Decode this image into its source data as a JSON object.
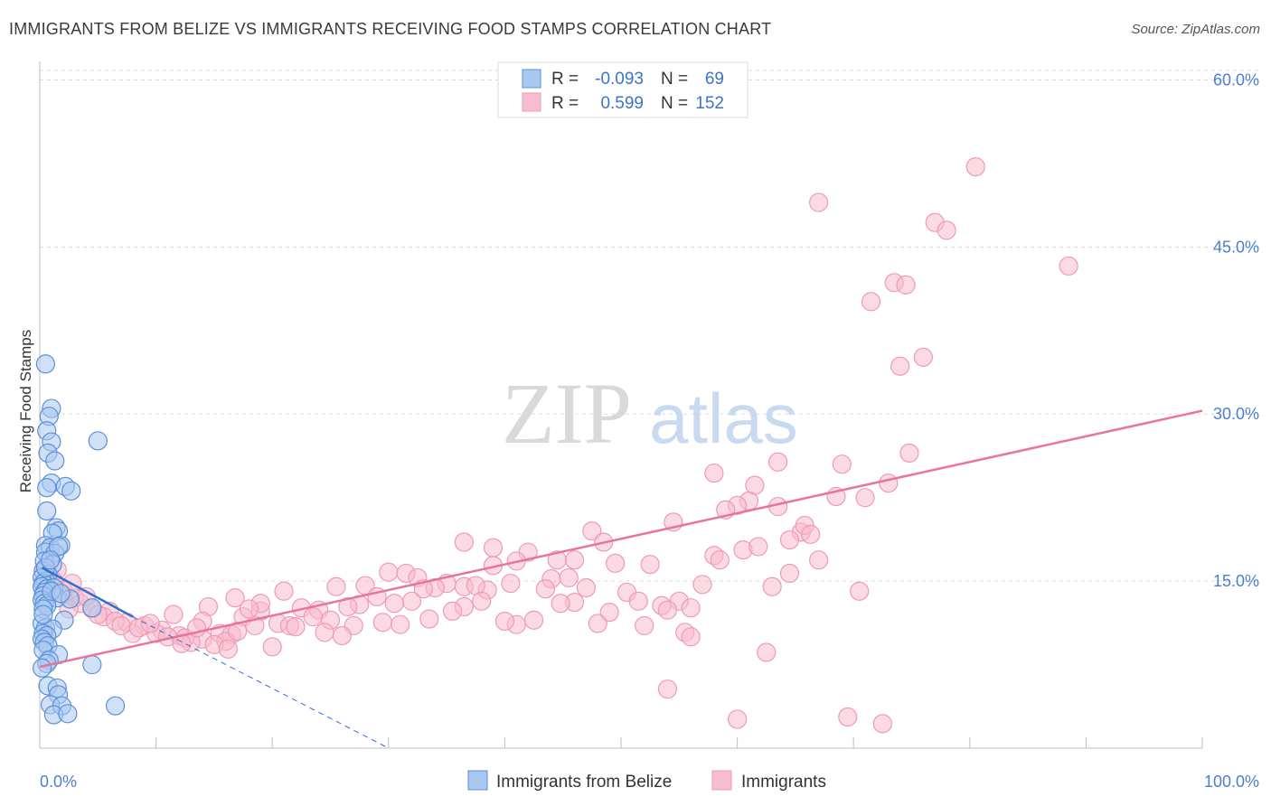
{
  "title": "IMMIGRANTS FROM BELIZE VS IMMIGRANTS RECEIVING FOOD STAMPS CORRELATION CHART",
  "source": "Source: ZipAtlas.com",
  "watermark": {
    "zip": "ZIP",
    "atlas": "atlas"
  },
  "colors": {
    "blue_fill": "#a9c8f0",
    "blue_stroke": "#5a8fd8",
    "blue_line": "#2e6fd0",
    "pink_fill": "#f7bccd",
    "pink_stroke": "#ee9ab4",
    "pink_line": "#e8739c",
    "grid": "#dddddd",
    "tick_text": "#4a7fd0"
  },
  "legend": {
    "rows": [
      {
        "r_label": "R =",
        "r_value": "-0.093",
        "n_label": "N =",
        "n_value": "69"
      },
      {
        "r_label": "R =",
        "r_value": "0.599",
        "n_label": "N =",
        "n_value": "152"
      }
    ]
  },
  "bottom_legend": [
    "Immigrants from Belize",
    "Immigrants"
  ],
  "chart_data": {
    "type": "scatter",
    "title": "IMMIGRANTS FROM BELIZE VS IMMIGRANTS RECEIVING FOOD STAMPS CORRELATION CHART",
    "xlabel": "",
    "ylabel": "Receiving Food Stamps",
    "xlim": [
      0,
      100
    ],
    "ylim": [
      0,
      61.5
    ],
    "x_tick_labels": [
      {
        "value": 0,
        "label": "0.0%"
      },
      {
        "value": 100,
        "label": "100.0%"
      }
    ],
    "y_tick_labels": [
      {
        "value": 15,
        "label": "15.0%"
      },
      {
        "value": 30,
        "label": "30.0%"
      },
      {
        "value": 45,
        "label": "45.0%"
      },
      {
        "value": 60,
        "label": "60.0%"
      }
    ],
    "grid": true,
    "legend_position": "top-center",
    "series": [
      {
        "name": "Immigrants from Belize",
        "color": "blue",
        "trend": {
          "x": [
            0.2,
            8
          ],
          "y": [
            16.2,
            11.8
          ],
          "dashed_to": [
            30,
            0
          ]
        },
        "points": [
          [
            0.5,
            34.5
          ],
          [
            1.0,
            30.5
          ],
          [
            0.8,
            29.8
          ],
          [
            0.6,
            28.5
          ],
          [
            1.0,
            27.5
          ],
          [
            5.0,
            27.6
          ],
          [
            0.7,
            26.5
          ],
          [
            1.3,
            25.8
          ],
          [
            1.0,
            23.8
          ],
          [
            0.6,
            23.4
          ],
          [
            2.2,
            23.5
          ],
          [
            2.7,
            23.1
          ],
          [
            0.6,
            21.3
          ],
          [
            1.4,
            19.8
          ],
          [
            1.6,
            19.5
          ],
          [
            1.1,
            19.3
          ],
          [
            0.5,
            18.2
          ],
          [
            0.9,
            18.0
          ],
          [
            1.8,
            18.2
          ],
          [
            0.5,
            17.6
          ],
          [
            1.3,
            17.5
          ],
          [
            1.6,
            18.1
          ],
          [
            0.4,
            16.8
          ],
          [
            1.1,
            16.5
          ],
          [
            0.3,
            15.9
          ],
          [
            0.7,
            15.6
          ],
          [
            0.2,
            15.3
          ],
          [
            0.5,
            15.0
          ],
          [
            0.3,
            14.8
          ],
          [
            0.2,
            14.5
          ],
          [
            0.6,
            14.3
          ],
          [
            1.2,
            14.4
          ],
          [
            0.4,
            14.0
          ],
          [
            0.3,
            13.7
          ],
          [
            1.5,
            13.5
          ],
          [
            2.6,
            13.4
          ],
          [
            0.2,
            13.3
          ],
          [
            0.4,
            13.0
          ],
          [
            0.6,
            12.8
          ],
          [
            4.5,
            12.6
          ],
          [
            0.3,
            12.5
          ],
          [
            2.1,
            11.5
          ],
          [
            0.2,
            11.2
          ],
          [
            0.5,
            10.8
          ],
          [
            1.1,
            10.7
          ],
          [
            0.3,
            10.3
          ],
          [
            0.6,
            10.1
          ],
          [
            0.2,
            9.8
          ],
          [
            0.4,
            9.5
          ],
          [
            0.7,
            9.2
          ],
          [
            0.3,
            8.8
          ],
          [
            1.6,
            8.4
          ],
          [
            0.8,
            7.9
          ],
          [
            0.6,
            7.6
          ],
          [
            4.5,
            7.5
          ],
          [
            0.2,
            7.2
          ],
          [
            0.7,
            5.6
          ],
          [
            1.5,
            5.4
          ],
          [
            1.6,
            4.8
          ],
          [
            0.9,
            3.9
          ],
          [
            1.9,
            3.8
          ],
          [
            6.5,
            3.8
          ],
          [
            1.2,
            3.0
          ],
          [
            2.4,
            3.1
          ],
          [
            0.5,
            16.2
          ],
          [
            0.9,
            16.9
          ],
          [
            0.3,
            12.0
          ],
          [
            1.0,
            14.1
          ],
          [
            1.8,
            13.9
          ]
        ]
      },
      {
        "name": "Immigrants",
        "color": "pink",
        "trend": {
          "x": [
            0,
            100
          ],
          "y": [
            7.3,
            30.3
          ]
        },
        "points": [
          [
            80.5,
            52.2
          ],
          [
            67.0,
            49.0
          ],
          [
            77.0,
            47.2
          ],
          [
            78.0,
            46.5
          ],
          [
            88.5,
            43.3
          ],
          [
            73.5,
            41.8
          ],
          [
            74.5,
            41.6
          ],
          [
            71.5,
            40.1
          ],
          [
            76.0,
            35.1
          ],
          [
            74.0,
            34.3
          ],
          [
            74.8,
            26.5
          ],
          [
            69.0,
            25.5
          ],
          [
            63.5,
            25.7
          ],
          [
            58.0,
            24.7
          ],
          [
            73.0,
            23.8
          ],
          [
            61.5,
            23.6
          ],
          [
            68.5,
            22.6
          ],
          [
            71.0,
            22.5
          ],
          [
            61.0,
            22.2
          ],
          [
            60.0,
            21.8
          ],
          [
            63.5,
            21.7
          ],
          [
            59.0,
            21.4
          ],
          [
            54.5,
            20.3
          ],
          [
            47.5,
            19.5
          ],
          [
            65.5,
            19.4
          ],
          [
            64.5,
            18.7
          ],
          [
            36.5,
            18.5
          ],
          [
            48.5,
            18.5
          ],
          [
            39.0,
            18.0
          ],
          [
            60.5,
            17.8
          ],
          [
            42.0,
            17.6
          ],
          [
            58.0,
            17.3
          ],
          [
            58.5,
            16.9
          ],
          [
            44.5,
            16.9
          ],
          [
            46.0,
            16.9
          ],
          [
            67.0,
            16.9
          ],
          [
            41.0,
            16.8
          ],
          [
            49.5,
            16.6
          ],
          [
            52.5,
            16.5
          ],
          [
            39.0,
            16.4
          ],
          [
            30.0,
            15.8
          ],
          [
            31.5,
            15.7
          ],
          [
            64.5,
            15.7
          ],
          [
            32.5,
            15.3
          ],
          [
            44.0,
            15.2
          ],
          [
            45.5,
            15.3
          ],
          [
            35.0,
            14.8
          ],
          [
            40.5,
            14.8
          ],
          [
            25.5,
            14.5
          ],
          [
            28.0,
            14.6
          ],
          [
            34.0,
            14.4
          ],
          [
            36.5,
            14.5
          ],
          [
            38.5,
            14.2
          ],
          [
            33.0,
            14.3
          ],
          [
            43.5,
            14.3
          ],
          [
            50.5,
            14.0
          ],
          [
            70.5,
            14.1
          ],
          [
            21.0,
            14.1
          ],
          [
            63.0,
            14.5
          ],
          [
            51.5,
            13.2
          ],
          [
            29.0,
            13.6
          ],
          [
            32.0,
            13.2
          ],
          [
            30.5,
            13.0
          ],
          [
            27.5,
            12.9
          ],
          [
            26.5,
            12.7
          ],
          [
            22.5,
            12.6
          ],
          [
            14.5,
            12.7
          ],
          [
            36.5,
            12.7
          ],
          [
            46.0,
            13.1
          ],
          [
            53.5,
            12.8
          ],
          [
            55.0,
            13.2
          ],
          [
            56.0,
            12.6
          ],
          [
            24.0,
            12.4
          ],
          [
            19.0,
            12.3
          ],
          [
            35.5,
            12.3
          ],
          [
            49.0,
            12.2
          ],
          [
            54.0,
            12.4
          ],
          [
            17.5,
            11.8
          ],
          [
            23.5,
            11.8
          ],
          [
            25.0,
            11.5
          ],
          [
            20.5,
            11.2
          ],
          [
            21.5,
            11.0
          ],
          [
            11.5,
            12.0
          ],
          [
            14.0,
            11.4
          ],
          [
            18.5,
            11.0
          ],
          [
            22.0,
            10.9
          ],
          [
            6.0,
            12.3
          ],
          [
            7.5,
            11.3
          ],
          [
            9.0,
            11.0
          ],
          [
            10.5,
            10.6
          ],
          [
            12.0,
            10.1
          ],
          [
            15.5,
            10.3
          ],
          [
            16.5,
            10.2
          ],
          [
            8.0,
            10.3
          ],
          [
            12.5,
            9.9
          ],
          [
            14.0,
            9.8
          ],
          [
            16.0,
            9.6
          ],
          [
            52.0,
            11.0
          ],
          [
            48.0,
            11.2
          ],
          [
            41.0,
            11.1
          ],
          [
            40.0,
            11.4
          ],
          [
            55.5,
            10.4
          ],
          [
            56.0,
            10.0
          ],
          [
            13.0,
            9.5
          ],
          [
            15.0,
            9.3
          ],
          [
            3.0,
            13.5
          ],
          [
            2.0,
            13.8
          ],
          [
            3.5,
            13.0
          ],
          [
            4.5,
            12.5
          ],
          [
            5.5,
            11.8
          ],
          [
            6.5,
            11.4
          ],
          [
            7.0,
            11.0
          ],
          [
            2.5,
            12.5
          ],
          [
            5.0,
            12.0
          ],
          [
            8.5,
            10.8
          ],
          [
            10.0,
            10.3
          ],
          [
            11.0,
            10.0
          ],
          [
            12.2,
            9.4
          ],
          [
            16.2,
            8.9
          ],
          [
            1.0,
            17.0
          ],
          [
            1.5,
            16.0
          ],
          [
            1.2,
            15.0
          ],
          [
            2.0,
            14.2
          ],
          [
            2.8,
            14.8
          ],
          [
            4.0,
            13.6
          ],
          [
            62.5,
            8.6
          ],
          [
            54.0,
            5.3
          ],
          [
            60.0,
            2.6
          ],
          [
            69.5,
            2.8
          ],
          [
            72.5,
            2.2
          ],
          [
            19.0,
            13.0
          ],
          [
            13.5,
            10.8
          ],
          [
            9.5,
            11.2
          ],
          [
            27.0,
            11.0
          ],
          [
            33.5,
            11.6
          ],
          [
            42.5,
            11.5
          ],
          [
            44.8,
            13.0
          ],
          [
            47.0,
            14.4
          ],
          [
            57.0,
            14.7
          ],
          [
            61.8,
            18.1
          ],
          [
            65.8,
            20.0
          ],
          [
            66.3,
            19.2
          ],
          [
            37.5,
            14.6
          ],
          [
            38.0,
            13.2
          ],
          [
            29.5,
            11.3
          ],
          [
            31.0,
            11.1
          ],
          [
            18.0,
            12.5
          ],
          [
            20.0,
            9.1
          ],
          [
            24.5,
            10.4
          ],
          [
            26.0,
            10.1
          ],
          [
            16.8,
            13.5
          ],
          [
            17.0,
            10.5
          ]
        ]
      }
    ]
  }
}
